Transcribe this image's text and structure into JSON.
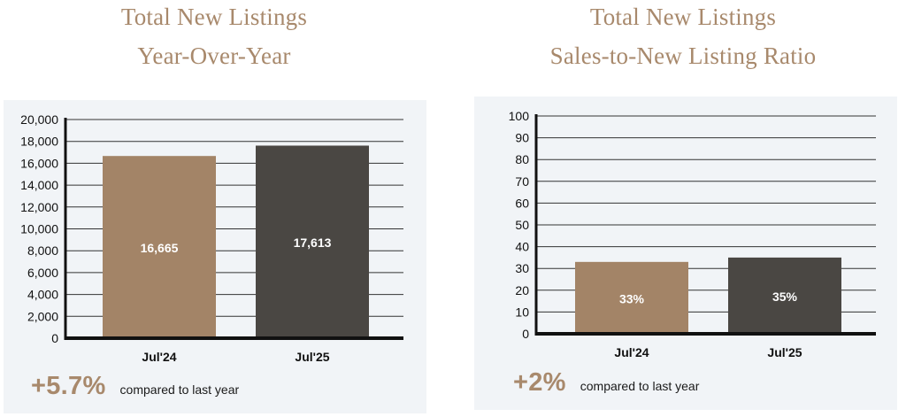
{
  "colors": {
    "title": "#a8896c",
    "panel_bg": "#f1f4f7",
    "bar_2024": "#a38467",
    "bar_2025": "#4a4743",
    "axis": "#111111",
    "grid": "#333333",
    "accent": "#a8896c"
  },
  "left": {
    "title_line1": "Total New Listings",
    "title_line2": "Year-Over-Year",
    "change": "+5.7%",
    "note": "compared to last year"
  },
  "right": {
    "title_line1": "Total New Listings",
    "title_line2": "Sales-to-New Listing Ratio",
    "change": "+2%",
    "note": "compared to last year"
  },
  "chart_data": [
    {
      "type": "bar",
      "categories": [
        "Jul'24",
        "Jul'25"
      ],
      "values": [
        16665,
        17613
      ],
      "data_labels": [
        "16,665",
        "17,613"
      ],
      "ylim": [
        0,
        20000
      ],
      "yticks": [
        0,
        2000,
        4000,
        6000,
        8000,
        10000,
        12000,
        14000,
        16000,
        18000,
        20000
      ],
      "ytick_labels": [
        "0",
        "2,000",
        "4,000",
        "6,000",
        "8,000",
        "10,000",
        "12,000",
        "14,000",
        "16,000",
        "18,000",
        "20,000"
      ],
      "grid": true,
      "xlabel": "",
      "ylabel": ""
    },
    {
      "type": "bar",
      "categories": [
        "Jul'24",
        "Jul'25"
      ],
      "values": [
        33,
        35
      ],
      "data_labels": [
        "33%",
        "35%"
      ],
      "ylim": [
        0,
        100
      ],
      "yticks": [
        0,
        10,
        20,
        30,
        40,
        50,
        60,
        70,
        80,
        90,
        100
      ],
      "ytick_labels": [
        "0",
        "10",
        "20",
        "30",
        "40",
        "50",
        "60",
        "70",
        "80",
        "90",
        "100"
      ],
      "grid": true,
      "xlabel": "",
      "ylabel": ""
    }
  ]
}
